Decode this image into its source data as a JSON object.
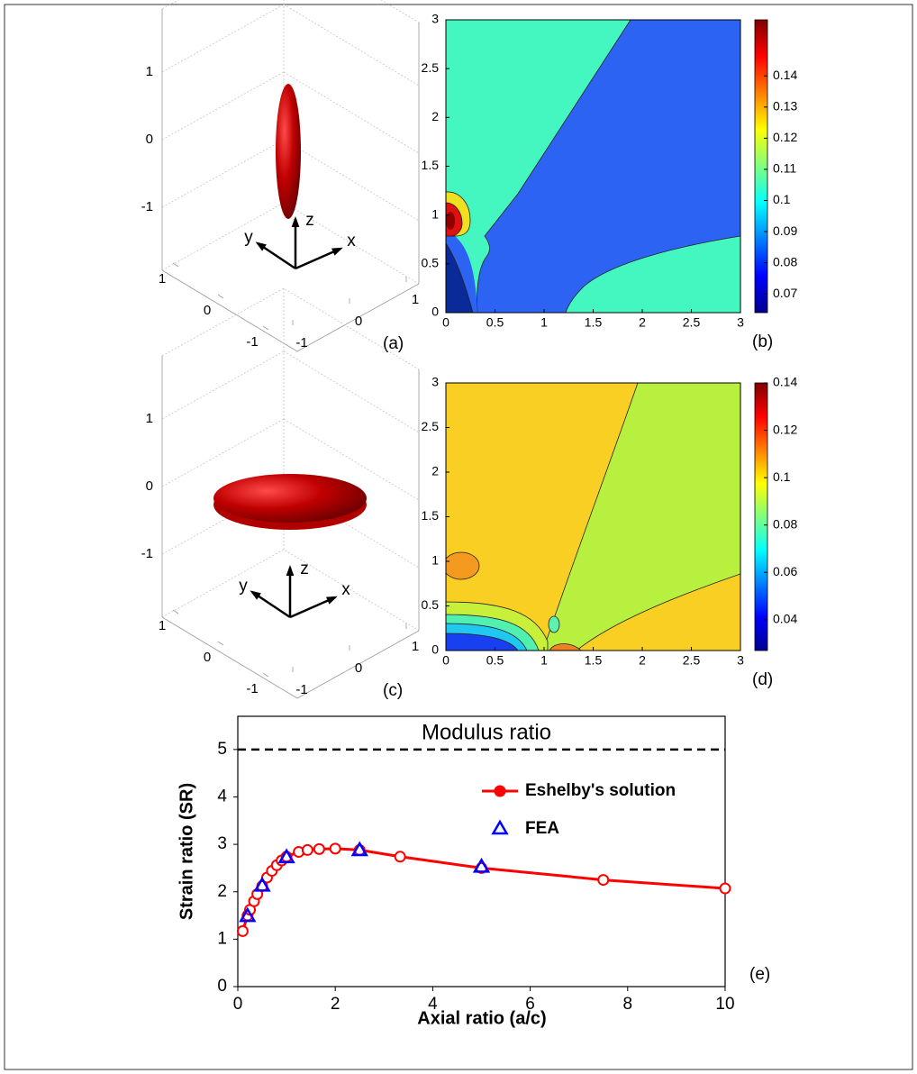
{
  "chart_data": [
    {
      "type": "surface3d",
      "panel_label": "(a)",
      "color": "#b00000",
      "xticks": [
        -1,
        0,
        1
      ],
      "yticks": [
        -1,
        0,
        1
      ],
      "zticks": [
        -1,
        0,
        1
      ],
      "xlabel": "x",
      "ylabel": "y",
      "zlabel": "z"
    },
    {
      "type": "contour",
      "panel_label": "(b)",
      "colormap": "jet",
      "xlim": [
        0,
        3
      ],
      "ylim": [
        0,
        3
      ],
      "xticks": [
        0,
        0.5,
        1,
        1.5,
        2,
        2.5,
        3
      ],
      "yticks": [
        0,
        0.5,
        1,
        1.5,
        2,
        2.5,
        3
      ],
      "clim": [
        0.064,
        0.158
      ],
      "cticks": [
        0.07,
        0.08,
        0.09,
        0.1,
        0.11,
        0.12,
        0.13,
        0.14
      ]
    },
    {
      "type": "surface3d",
      "panel_label": "(c)",
      "color": "#b00000",
      "xticks": [
        -1,
        0,
        1
      ],
      "yticks": [
        -1,
        0,
        1
      ],
      "zticks": [
        -1,
        0,
        1
      ],
      "xlabel": "x",
      "ylabel": "y",
      "zlabel": "z"
    },
    {
      "type": "contour",
      "panel_label": "(d)",
      "colormap": "jet",
      "xlim": [
        0,
        3
      ],
      "ylim": [
        0,
        3
      ],
      "xticks": [
        0,
        0.5,
        1,
        1.5,
        2,
        2.5,
        3
      ],
      "yticks": [
        0,
        0.5,
        1,
        1.5,
        2,
        2.5,
        3
      ],
      "clim": [
        0.027,
        0.14
      ],
      "cticks": [
        0.04,
        0.06,
        0.08,
        0.1,
        0.12,
        0.14
      ]
    },
    {
      "type": "line",
      "panel_label": "(e)",
      "xlabel": "Axial ratio (a/c)",
      "ylabel": "Strain ratio (SR)",
      "annotation": "Modulus ratio",
      "reference_line": 5,
      "xlim": [
        0,
        10
      ],
      "ylim": [
        0,
        5.7
      ],
      "xticks": [
        0,
        2,
        4,
        6,
        8,
        10
      ],
      "yticks": [
        0,
        1,
        2,
        3,
        4,
        5
      ],
      "series": [
        {
          "name": "Eshelby's solution",
          "color": "#ff0000",
          "marker": "circle",
          "line": true,
          "x": [
            0.1,
            0.2,
            0.25,
            0.333,
            0.4,
            0.5,
            0.6,
            0.7,
            0.8,
            0.9,
            1,
            1.25,
            1.43,
            1.67,
            2,
            2.5,
            3.33,
            5,
            7.5,
            10
          ],
          "values": [
            1.17,
            1.5,
            1.62,
            1.8,
            1.95,
            2.12,
            2.3,
            2.44,
            2.56,
            2.66,
            2.74,
            2.84,
            2.88,
            2.9,
            2.91,
            2.88,
            2.74,
            2.5,
            2.25,
            2.07
          ]
        },
        {
          "name": "FEA",
          "color": "#0000ff",
          "marker": "triangle",
          "line": false,
          "x": [
            0.2,
            0.5,
            1,
            2.5,
            5
          ],
          "values": [
            1.48,
            2.12,
            2.72,
            2.87,
            2.52
          ]
        }
      ]
    }
  ]
}
